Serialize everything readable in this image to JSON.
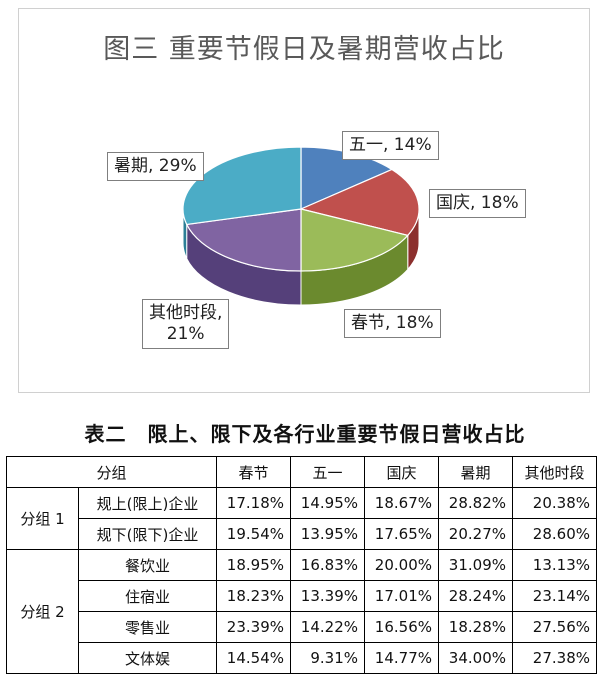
{
  "chart_data": {
    "type": "pie",
    "title": "图三  重要节假日及暑期营收占比",
    "slices": [
      {
        "label": "五一",
        "value": 14,
        "display": "五一, 14%",
        "color": "#4f81bd",
        "side": "#2f5f93"
      },
      {
        "label": "国庆",
        "value": 18,
        "display": "国庆, 18%",
        "color": "#c0504d",
        "side": "#8c2f2d"
      },
      {
        "label": "春节",
        "value": 18,
        "display": "春节, 18%",
        "color": "#9bbb59",
        "side": "#6b8a2e"
      },
      {
        "label": "其他时段",
        "value": 21,
        "display_lines": [
          "其他时段,",
          "21%"
        ],
        "color": "#8064a2",
        "side": "#55407a"
      },
      {
        "label": "暑期",
        "value": 29,
        "display": "暑期, 29%",
        "color": "#4bacc6",
        "side": "#2c7f96"
      }
    ]
  },
  "table": {
    "title": "表二　限上、限下及各行业重要节假日营收占比",
    "headers": [
      "分组",
      "春节",
      "五一",
      "国庆",
      "暑期",
      "其他时段"
    ],
    "groups": [
      {
        "name": "分组 1",
        "rows": [
          {
            "label": "规上(限上)企业",
            "values": [
              "17.18%",
              "14.95%",
              "18.67%",
              "28.82%",
              "20.38%"
            ]
          },
          {
            "label": "规下(限下)企业",
            "values": [
              "19.54%",
              "13.95%",
              "17.65%",
              "20.27%",
              "28.60%"
            ]
          }
        ]
      },
      {
        "name": "分组 2",
        "rows": [
          {
            "label": "餐饮业",
            "values": [
              "18.95%",
              "16.83%",
              "20.00%",
              "31.09%",
              "13.13%"
            ]
          },
          {
            "label": "住宿业",
            "values": [
              "18.23%",
              "13.39%",
              "17.01%",
              "28.24%",
              "23.14%"
            ]
          },
          {
            "label": "零售业",
            "values": [
              "23.39%",
              "14.22%",
              "16.56%",
              "18.28%",
              "27.56%"
            ]
          },
          {
            "label": "文体娱",
            "values": [
              "14.54%",
              "9.31%",
              "14.77%",
              "34.00%",
              "27.38%"
            ]
          }
        ]
      }
    ]
  }
}
